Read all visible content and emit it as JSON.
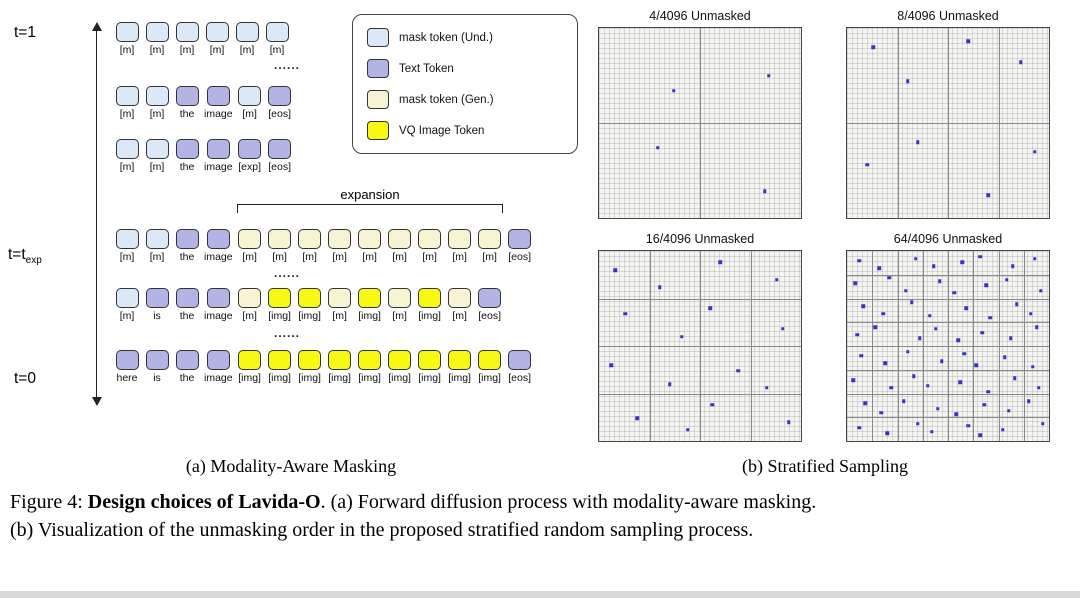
{
  "figure": {
    "colors": {
      "und": "#dbe8f8",
      "text": "#b3b3e6",
      "gen": "#f7f4d3",
      "img": "#f8f815",
      "dot": "#3434c8"
    },
    "panel_a": {
      "caption": "(a) Modality-Aware Masking",
      "expansion_label": "expansion",
      "ellipsis": "......",
      "time_labels": {
        "top": "t=1",
        "mid_base": "t=t",
        "mid_sub": "exp",
        "bottom": "t=0"
      },
      "legend": [
        {
          "label": "mask token (Und.)",
          "type": "und"
        },
        {
          "label": "Text Token",
          "type": "text"
        },
        {
          "label": "mask token (Gen.)",
          "type": "gen"
        },
        {
          "label": "VQ Image Token",
          "type": "img"
        }
      ],
      "rows": [
        {
          "time": "top",
          "ellipsis_after": true,
          "tokens": [
            {
              "l": "[m]",
              "t": "und"
            },
            {
              "l": "[m]",
              "t": "und"
            },
            {
              "l": "[m]",
              "t": "und"
            },
            {
              "l": "[m]",
              "t": "und"
            },
            {
              "l": "[m]",
              "t": "und"
            },
            {
              "l": "[m]",
              "t": "und"
            }
          ]
        },
        {
          "tokens": [
            {
              "l": "[m]",
              "t": "und"
            },
            {
              "l": "[m]",
              "t": "und"
            },
            {
              "l": "the",
              "t": "text"
            },
            {
              "l": "image",
              "t": "text"
            },
            {
              "l": "[m]",
              "t": "und"
            },
            {
              "l": "[eos]",
              "t": "text"
            }
          ]
        },
        {
          "tokens": [
            {
              "l": "[m]",
              "t": "und"
            },
            {
              "l": "[m]",
              "t": "und"
            },
            {
              "l": "the",
              "t": "text"
            },
            {
              "l": "image",
              "t": "text"
            },
            {
              "l": "[exp]",
              "t": "text"
            },
            {
              "l": "[eos]",
              "t": "text"
            }
          ]
        },
        {
          "time": "mid",
          "expansion": true,
          "ellipsis_after": true,
          "tokens": [
            {
              "l": "[m]",
              "t": "und"
            },
            {
              "l": "[m]",
              "t": "und"
            },
            {
              "l": "the",
              "t": "text"
            },
            {
              "l": "image",
              "t": "text"
            },
            {
              "l": "[m]",
              "t": "gen"
            },
            {
              "l": "[m]",
              "t": "gen"
            },
            {
              "l": "[m]",
              "t": "gen"
            },
            {
              "l": "[m]",
              "t": "gen"
            },
            {
              "l": "[m]",
              "t": "gen"
            },
            {
              "l": "[m]",
              "t": "gen"
            },
            {
              "l": "[m]",
              "t": "gen"
            },
            {
              "l": "[m]",
              "t": "gen"
            },
            {
              "l": "[m]",
              "t": "gen"
            },
            {
              "l": "[eos]",
              "t": "text"
            }
          ]
        },
        {
          "ellipsis_after": true,
          "tokens": [
            {
              "l": "[m]",
              "t": "und"
            },
            {
              "l": "is",
              "t": "text"
            },
            {
              "l": "the",
              "t": "text"
            },
            {
              "l": "image",
              "t": "text"
            },
            {
              "l": "[m]",
              "t": "gen"
            },
            {
              "l": "[img]",
              "t": "img"
            },
            {
              "l": "[img]",
              "t": "img"
            },
            {
              "l": "[m]",
              "t": "gen"
            },
            {
              "l": "[img]",
              "t": "img"
            },
            {
              "l": "[m]",
              "t": "gen"
            },
            {
              "l": "[img]",
              "t": "img"
            },
            {
              "l": "[m]",
              "t": "gen"
            },
            {
              "l": "[eos]",
              "t": "text"
            }
          ]
        },
        {
          "time": "bottom",
          "tokens": [
            {
              "l": "here",
              "t": "text"
            },
            {
              "l": "is",
              "t": "text"
            },
            {
              "l": "the",
              "t": "text"
            },
            {
              "l": "image",
              "t": "text"
            },
            {
              "l": "[img]",
              "t": "img"
            },
            {
              "l": "[img]",
              "t": "img"
            },
            {
              "l": "[img]",
              "t": "img"
            },
            {
              "l": "[img]",
              "t": "img"
            },
            {
              "l": "[img]",
              "t": "img"
            },
            {
              "l": "[img]",
              "t": "img"
            },
            {
              "l": "[img]",
              "t": "img"
            },
            {
              "l": "[img]",
              "t": "img"
            },
            {
              "l": "[img]",
              "t": "img"
            },
            {
              "l": "[eos]",
              "t": "text"
            }
          ]
        }
      ]
    },
    "panel_b": {
      "caption": "(b) Stratified Sampling",
      "panels": [
        {
          "title": "4/4096 Unmasked",
          "cols": 2,
          "rows": 2,
          "dots": [
            [
              0.37,
              0.33
            ],
            [
              0.84,
              0.25
            ],
            [
              0.29,
              0.63
            ],
            [
              0.82,
              0.86
            ]
          ]
        },
        {
          "title": "8/4096 Unmasked",
          "cols": 4,
          "rows": 2,
          "dots": [
            [
              0.13,
              0.1
            ],
            [
              0.3,
              0.28
            ],
            [
              0.6,
              0.07
            ],
            [
              0.86,
              0.18
            ],
            [
              0.1,
              0.72
            ],
            [
              0.35,
              0.6
            ],
            [
              0.7,
              0.88
            ],
            [
              0.93,
              0.65
            ]
          ]
        },
        {
          "title": "16/4096 Unmasked",
          "cols": 4,
          "rows": 4,
          "dots": [
            [
              0.08,
              0.1
            ],
            [
              0.3,
              0.19
            ],
            [
              0.6,
              0.06
            ],
            [
              0.88,
              0.15
            ],
            [
              0.13,
              0.33
            ],
            [
              0.41,
              0.45
            ],
            [
              0.55,
              0.3
            ],
            [
              0.91,
              0.41
            ],
            [
              0.06,
              0.6
            ],
            [
              0.35,
              0.7
            ],
            [
              0.69,
              0.63
            ],
            [
              0.83,
              0.72
            ],
            [
              0.19,
              0.88
            ],
            [
              0.44,
              0.94
            ],
            [
              0.56,
              0.81
            ],
            [
              0.94,
              0.9
            ]
          ]
        },
        {
          "title": "64/4096 Unmasked",
          "cols": 8,
          "rows": 8,
          "dots": [
            [
              0.06,
              0.05
            ],
            [
              0.16,
              0.09
            ],
            [
              0.34,
              0.04
            ],
            [
              0.43,
              0.08
            ],
            [
              0.57,
              0.06
            ],
            [
              0.66,
              0.03
            ],
            [
              0.82,
              0.08
            ],
            [
              0.93,
              0.04
            ],
            [
              0.04,
              0.17
            ],
            [
              0.21,
              0.14
            ],
            [
              0.29,
              0.21
            ],
            [
              0.46,
              0.16
            ],
            [
              0.53,
              0.22
            ],
            [
              0.69,
              0.18
            ],
            [
              0.79,
              0.15
            ],
            [
              0.96,
              0.21
            ],
            [
              0.08,
              0.29
            ],
            [
              0.18,
              0.33
            ],
            [
              0.32,
              0.27
            ],
            [
              0.41,
              0.34
            ],
            [
              0.59,
              0.3
            ],
            [
              0.71,
              0.35
            ],
            [
              0.84,
              0.28
            ],
            [
              0.91,
              0.33
            ],
            [
              0.05,
              0.44
            ],
            [
              0.14,
              0.4
            ],
            [
              0.36,
              0.46
            ],
            [
              0.44,
              0.41
            ],
            [
              0.55,
              0.47
            ],
            [
              0.67,
              0.43
            ],
            [
              0.81,
              0.46
            ],
            [
              0.94,
              0.4
            ],
            [
              0.07,
              0.55
            ],
            [
              0.19,
              0.59
            ],
            [
              0.3,
              0.53
            ],
            [
              0.47,
              0.58
            ],
            [
              0.58,
              0.54
            ],
            [
              0.64,
              0.6
            ],
            [
              0.78,
              0.56
            ],
            [
              0.92,
              0.61
            ],
            [
              0.03,
              0.68
            ],
            [
              0.22,
              0.72
            ],
            [
              0.33,
              0.66
            ],
            [
              0.4,
              0.71
            ],
            [
              0.56,
              0.69
            ],
            [
              0.7,
              0.74
            ],
            [
              0.83,
              0.67
            ],
            [
              0.95,
              0.72
            ],
            [
              0.09,
              0.8
            ],
            [
              0.17,
              0.85
            ],
            [
              0.28,
              0.79
            ],
            [
              0.45,
              0.83
            ],
            [
              0.54,
              0.86
            ],
            [
              0.68,
              0.81
            ],
            [
              0.8,
              0.84
            ],
            [
              0.9,
              0.79
            ],
            [
              0.06,
              0.93
            ],
            [
              0.2,
              0.96
            ],
            [
              0.35,
              0.91
            ],
            [
              0.42,
              0.95
            ],
            [
              0.6,
              0.92
            ],
            [
              0.66,
              0.97
            ],
            [
              0.77,
              0.94
            ],
            [
              0.97,
              0.91
            ]
          ]
        }
      ]
    },
    "caption": {
      "line1_prefix": "Figure 4: ",
      "line1_bold": "Design choices of Lavida-O",
      "line1_rest": ". (a) Forward diffusion process with modality-aware masking.",
      "line2": "(b) Visualization of the unmasking order in the proposed stratified random sampling process."
    }
  }
}
